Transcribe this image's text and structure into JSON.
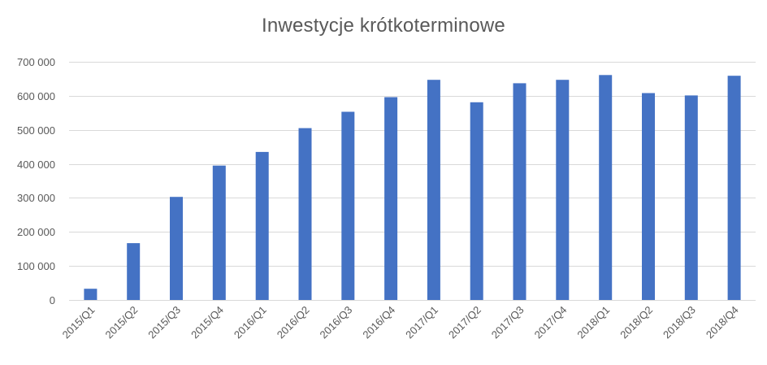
{
  "chart_data": {
    "type": "bar",
    "title": "Inwestycje krótkoterminowe",
    "categories": [
      "2015/Q1",
      "2015/Q2",
      "2015/Q3",
      "2015/Q4",
      "2016/Q1",
      "2016/Q2",
      "2016/Q3",
      "2016/Q4",
      "2017/Q1",
      "2017/Q2",
      "2017/Q3",
      "2017/Q4",
      "2018/Q1",
      "2018/Q2",
      "2018/Q3",
      "2018/Q4"
    ],
    "values": [
      33000,
      167000,
      303000,
      395000,
      435000,
      505000,
      553000,
      596000,
      647000,
      581000,
      637000,
      647000,
      661000,
      608000,
      601000,
      659000
    ],
    "ylim": [
      0,
      700000
    ],
    "yticks": [
      0,
      100000,
      200000,
      300000,
      400000,
      500000,
      600000,
      700000
    ],
    "ytick_labels": [
      "0",
      "100 000",
      "200 000",
      "300 000",
      "400 000",
      "500 000",
      "600 000",
      "700 000"
    ],
    "grid": true,
    "legend": "none",
    "bar_color": "#4472C4",
    "grid_color": "#D9D9D9",
    "text_color": "#595959"
  }
}
